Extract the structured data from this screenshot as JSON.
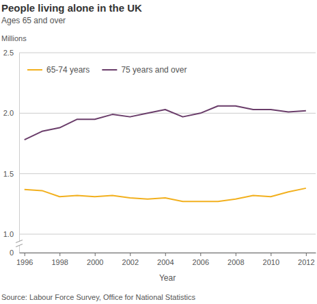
{
  "chart_data": {
    "type": "line",
    "title": "People living alone in the UK",
    "subtitle": "Ages 65 and over",
    "y_label": "Millions",
    "x_label": "Year",
    "source": "Source: Labour Force Survey, Office for National Statistics",
    "x": [
      1996,
      1997,
      1998,
      1999,
      2000,
      2001,
      2002,
      2003,
      2004,
      2005,
      2006,
      2007,
      2008,
      2009,
      2010,
      2011,
      2012
    ],
    "series": [
      {
        "name": "65-74 years",
        "color": "#f2b01e",
        "values": [
          1.37,
          1.36,
          1.31,
          1.32,
          1.31,
          1.32,
          1.3,
          1.29,
          1.3,
          1.27,
          1.27,
          1.27,
          1.29,
          1.32,
          1.31,
          1.35,
          1.38
        ]
      },
      {
        "name": "75 years and over",
        "color": "#6a3d6a",
        "values": [
          1.78,
          1.85,
          1.88,
          1.95,
          1.95,
          1.99,
          1.97,
          2.0,
          2.03,
          1.97,
          2.0,
          2.06,
          2.06,
          2.03,
          2.03,
          2.01,
          2.02
        ]
      }
    ],
    "xlim": [
      1995.7,
      2012.55
    ],
    "xticks": [
      1996,
      1998,
      2000,
      2002,
      2004,
      2006,
      2008,
      2010,
      2012
    ],
    "ylim": [
      0,
      2.5
    ],
    "yticks": [
      0,
      {
        "value": 1.0,
        "label": "1.0"
      },
      1.5,
      {
        "value": 2.0,
        "label": "2.0"
      },
      2.5
    ],
    "grid": true,
    "legend": "top-left"
  }
}
